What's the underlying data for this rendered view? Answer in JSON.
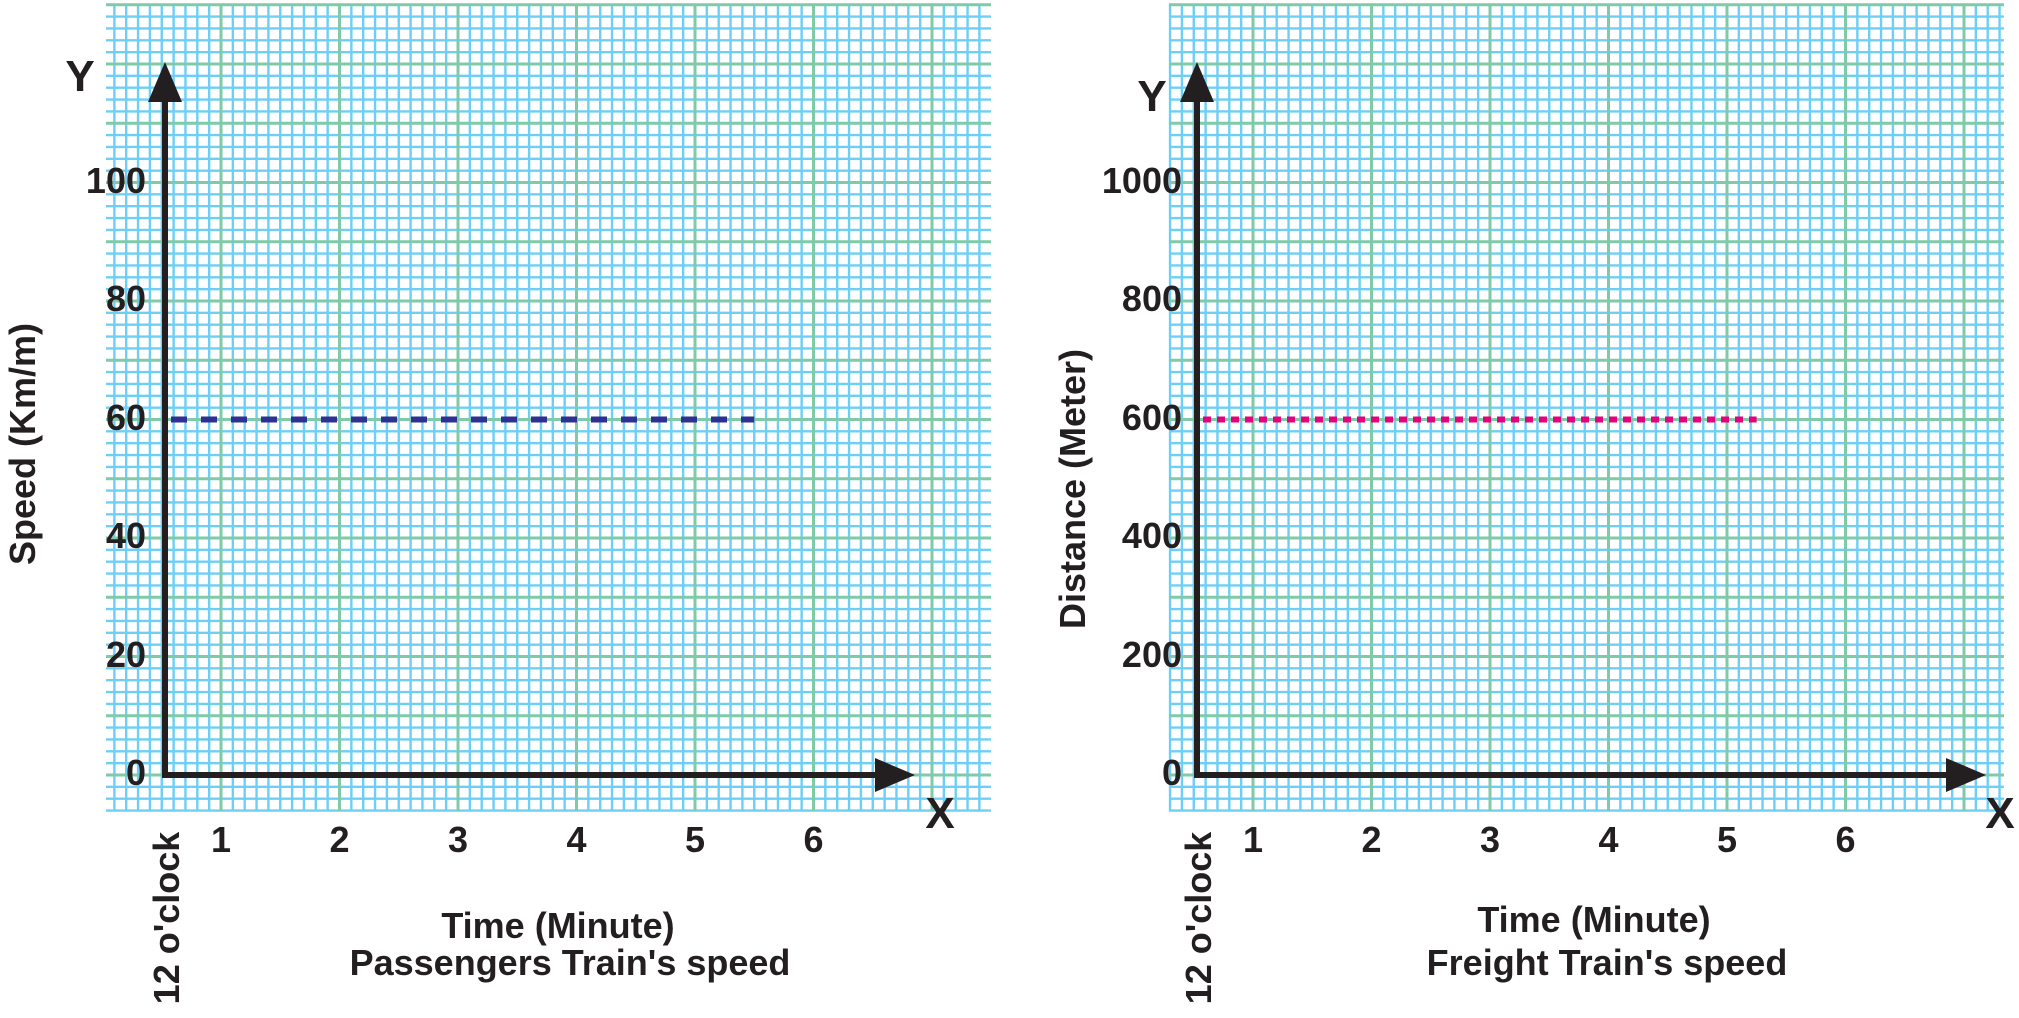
{
  "colors": {
    "minor_grid": "#6dcff6",
    "major_grid": "#7fcaa8",
    "axis": "#231f20"
  },
  "chart_data": [
    {
      "type": "line",
      "title": "Passengers Train's speed",
      "xlabel": "Time (Minute)",
      "ylabel": "Speed (Km/m)",
      "x_origin_label": "12 o'clock",
      "x_axis_letter": "X",
      "y_axis_letter": "Y",
      "x_ticks": [
        "1",
        "2",
        "3",
        "4",
        "5",
        "6"
      ],
      "y_ticks": [
        "0",
        "20",
        "40",
        "60",
        "80",
        "100"
      ],
      "grid": true,
      "series": [
        {
          "style": "dashed",
          "color": "#2e3192",
          "x": [
            0,
            5.5
          ],
          "y": [
            60,
            60
          ]
        }
      ]
    },
    {
      "type": "line",
      "title": "Freight Train's speed",
      "xlabel": "Time (Minute)",
      "ylabel": "Distance (Meter)",
      "x_origin_label": "12 o'clock",
      "x_axis_letter": "X",
      "y_axis_letter": "Y",
      "x_ticks": [
        "1",
        "2",
        "3",
        "4",
        "5",
        "6"
      ],
      "y_ticks": [
        "0",
        "200",
        "400",
        "600",
        "800",
        "1000"
      ],
      "grid": true,
      "series": [
        {
          "style": "dotted",
          "color": "#e6007e",
          "x": [
            0,
            5.25
          ],
          "y": [
            600,
            600
          ]
        }
      ]
    }
  ]
}
